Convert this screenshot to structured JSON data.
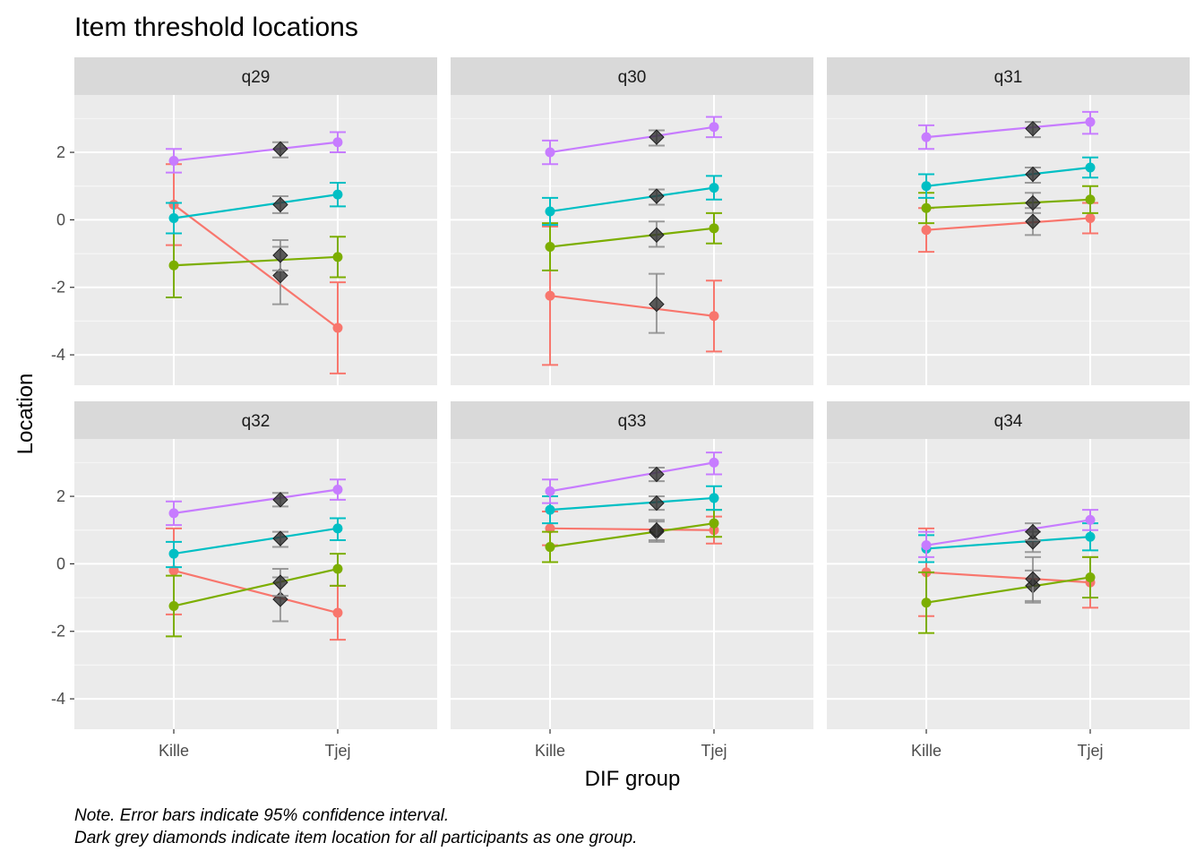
{
  "chart_data": {
    "type": "line",
    "title": "Item threshold locations",
    "xlabel": "DIF group",
    "ylabel": "Location",
    "categories": [
      "Kille",
      "Tjej"
    ],
    "overall_position": 0.65,
    "ylim": [
      -4.9,
      3.7
    ],
    "yticks": [
      -4,
      -2,
      0,
      2
    ],
    "grid": true,
    "facet_layout": {
      "rows": 2,
      "cols": 3
    },
    "colors": {
      "t1": "#F8766D",
      "t2": "#7CAE00",
      "t3": "#00BFC4",
      "t4": "#C77CFF",
      "overall": "#333333",
      "overall_errorbar": "#8c8c8c"
    },
    "series_order": [
      "t1",
      "t2",
      "t3",
      "t4"
    ],
    "facets": [
      {
        "name": "q29",
        "series": {
          "t1": {
            "values": [
              0.45,
              -3.2
            ],
            "ci": [
              [
                -0.75,
                1.65
              ],
              [
                -4.55,
                -1.85
              ]
            ]
          },
          "t2": {
            "values": [
              -1.35,
              -1.1
            ],
            "ci": [
              [
                -2.3,
                -0.4
              ],
              [
                -1.7,
                -0.5
              ]
            ]
          },
          "t3": {
            "values": [
              0.05,
              0.75
            ],
            "ci": [
              [
                -0.4,
                0.5
              ],
              [
                0.4,
                1.1
              ]
            ]
          },
          "t4": {
            "values": [
              1.75,
              2.3
            ],
            "ci": [
              [
                1.4,
                2.1
              ],
              [
                2.0,
                2.6
              ]
            ]
          }
        },
        "overall": [
          {
            "value": -1.65,
            "ci": [
              -2.5,
              -0.8
            ]
          },
          {
            "value": -1.05,
            "ci": [
              -1.5,
              -0.6
            ]
          },
          {
            "value": 0.45,
            "ci": [
              0.2,
              0.7
            ]
          },
          {
            "value": 2.1,
            "ci": [
              1.85,
              2.3
            ]
          }
        ]
      },
      {
        "name": "q30",
        "series": {
          "t1": {
            "values": [
              -2.25,
              -2.85
            ],
            "ci": [
              [
                -4.3,
                -0.2
              ],
              [
                -3.9,
                -1.8
              ]
            ]
          },
          "t2": {
            "values": [
              -0.8,
              -0.25
            ],
            "ci": [
              [
                -1.5,
                -0.1
              ],
              [
                -0.7,
                0.2
              ]
            ]
          },
          "t3": {
            "values": [
              0.25,
              0.95
            ],
            "ci": [
              [
                -0.15,
                0.65
              ],
              [
                0.6,
                1.3
              ]
            ]
          },
          "t4": {
            "values": [
              2.0,
              2.75
            ],
            "ci": [
              [
                1.65,
                2.35
              ],
              [
                2.45,
                3.05
              ]
            ]
          }
        },
        "overall": [
          {
            "value": -2.5,
            "ci": [
              -3.35,
              -1.6
            ]
          },
          {
            "value": -0.45,
            "ci": [
              -0.8,
              -0.05
            ]
          },
          {
            "value": 0.7,
            "ci": [
              0.45,
              0.9
            ]
          },
          {
            "value": 2.45,
            "ci": [
              2.2,
              2.65
            ]
          }
        ]
      },
      {
        "name": "q31",
        "series": {
          "t1": {
            "values": [
              -0.3,
              0.05
            ],
            "ci": [
              [
                -0.95,
                0.35
              ],
              [
                -0.4,
                0.5
              ]
            ]
          },
          "t2": {
            "values": [
              0.35,
              0.6
            ],
            "ci": [
              [
                -0.1,
                0.8
              ],
              [
                0.2,
                1.0
              ]
            ]
          },
          "t3": {
            "values": [
              1.0,
              1.55
            ],
            "ci": [
              [
                0.65,
                1.35
              ],
              [
                1.25,
                1.85
              ]
            ]
          },
          "t4": {
            "values": [
              2.45,
              2.9
            ],
            "ci": [
              [
                2.1,
                2.8
              ],
              [
                2.55,
                3.2
              ]
            ]
          }
        },
        "overall": [
          {
            "value": -0.05,
            "ci": [
              -0.45,
              0.35
            ]
          },
          {
            "value": 0.5,
            "ci": [
              0.2,
              0.8
            ]
          },
          {
            "value": 1.35,
            "ci": [
              1.1,
              1.55
            ]
          },
          {
            "value": 2.7,
            "ci": [
              2.45,
              2.9
            ]
          }
        ]
      },
      {
        "name": "q32",
        "series": {
          "t1": {
            "values": [
              -0.2,
              -1.45
            ],
            "ci": [
              [
                -1.5,
                1.05
              ],
              [
                -2.25,
                -0.65
              ]
            ]
          },
          "t2": {
            "values": [
              -1.25,
              -0.15
            ],
            "ci": [
              [
                -2.15,
                -0.35
              ],
              [
                -0.65,
                0.3
              ]
            ]
          },
          "t3": {
            "values": [
              0.3,
              1.05
            ],
            "ci": [
              [
                -0.1,
                0.65
              ],
              [
                0.7,
                1.35
              ]
            ]
          },
          "t4": {
            "values": [
              1.5,
              2.2
            ],
            "ci": [
              [
                1.15,
                1.85
              ],
              [
                1.9,
                2.5
              ]
            ]
          }
        },
        "overall": [
          {
            "value": -1.05,
            "ci": [
              -1.7,
              -0.4
            ]
          },
          {
            "value": -0.55,
            "ci": [
              -0.95,
              -0.15
            ]
          },
          {
            "value": 0.75,
            "ci": [
              0.5,
              0.95
            ]
          },
          {
            "value": 1.9,
            "ci": [
              1.7,
              2.1
            ]
          }
        ]
      },
      {
        "name": "q33",
        "series": {
          "t1": {
            "values": [
              1.05,
              1.0
            ],
            "ci": [
              [
                0.55,
                1.55
              ],
              [
                0.6,
                1.4
              ]
            ]
          },
          "t2": {
            "values": [
              0.5,
              1.2
            ],
            "ci": [
              [
                0.05,
                0.95
              ],
              [
                0.8,
                1.6
              ]
            ]
          },
          "t3": {
            "values": [
              1.6,
              1.95
            ],
            "ci": [
              [
                1.2,
                2.0
              ],
              [
                1.6,
                2.3
              ]
            ]
          },
          "t4": {
            "values": [
              2.15,
              3.0
            ],
            "ci": [
              [
                1.8,
                2.5
              ],
              [
                2.65,
                3.3
              ]
            ]
          }
        },
        "overall": [
          {
            "value": 0.95,
            "ci": [
              0.65,
              1.25
            ]
          },
          {
            "value": 1.0,
            "ci": [
              0.7,
              1.3
            ]
          },
          {
            "value": 1.8,
            "ci": [
              1.6,
              2.0
            ]
          },
          {
            "value": 2.65,
            "ci": [
              2.45,
              2.85
            ]
          }
        ]
      },
      {
        "name": "q34",
        "series": {
          "t1": {
            "values": [
              -0.25,
              -0.55
            ],
            "ci": [
              [
                -1.55,
                1.05
              ],
              [
                -1.3,
                0.2
              ]
            ]
          },
          "t2": {
            "values": [
              -1.15,
              -0.4
            ],
            "ci": [
              [
                -2.05,
                -0.25
              ],
              [
                -1.0,
                0.2
              ]
            ]
          },
          "t3": {
            "values": [
              0.45,
              0.8
            ],
            "ci": [
              [
                0.05,
                0.85
              ],
              [
                0.4,
                1.2
              ]
            ]
          },
          "t4": {
            "values": [
              0.55,
              1.3
            ],
            "ci": [
              [
                0.2,
                0.95
              ],
              [
                1.0,
                1.6
              ]
            ]
          }
        },
        "overall": [
          {
            "value": -0.65,
            "ci": [
              -1.15,
              -0.2
            ]
          },
          {
            "value": -0.45,
            "ci": [
              -1.1,
              0.2
            ]
          },
          {
            "value": 0.65,
            "ci": [
              0.35,
              0.95
            ]
          },
          {
            "value": 0.95,
            "ci": [
              0.7,
              1.2
            ]
          }
        ]
      }
    ],
    "notes": [
      "Note. Error bars indicate 95% confidence interval.",
      "Dark grey diamonds indicate item location for all participants as one group."
    ]
  }
}
